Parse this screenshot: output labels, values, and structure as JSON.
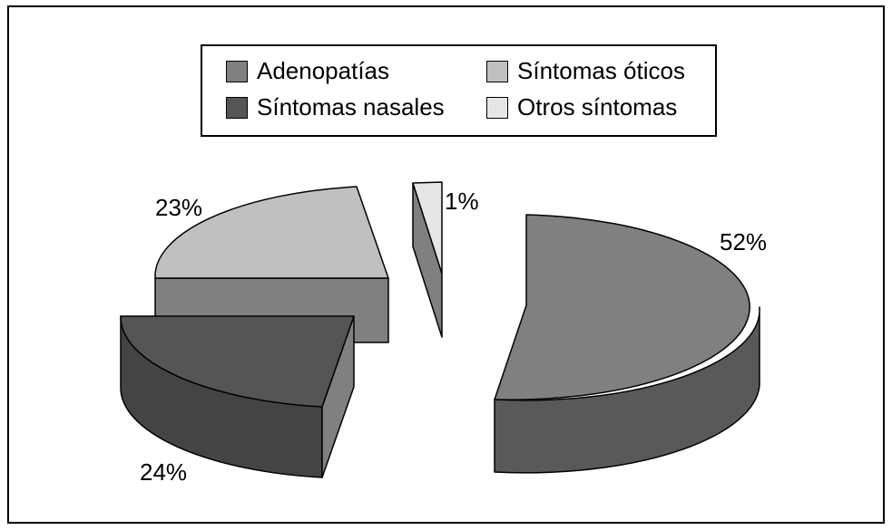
{
  "chart_data": {
    "type": "pie",
    "style": "3d-exploded",
    "title": "",
    "categories": [
      "Adenopatías",
      "Síntomas nasales",
      "Síntomas óticos",
      "Otros síntomas"
    ],
    "values": [
      52,
      24,
      23,
      1
    ],
    "value_labels": [
      "52%",
      "24%",
      "23%",
      "1%"
    ],
    "colors": [
      "#808080",
      "#555555",
      "#c0c0c0",
      "#e6e6e6"
    ],
    "legend_position": "top-center"
  },
  "legend": {
    "items": [
      {
        "label": "Adenopatías",
        "color": "#808080"
      },
      {
        "label": "Síntomas óticos",
        "color": "#c0c0c0"
      },
      {
        "label": "Síntomas nasales",
        "color": "#555555"
      },
      {
        "label": "Otros síntomas",
        "color": "#e6e6e6"
      }
    ]
  }
}
